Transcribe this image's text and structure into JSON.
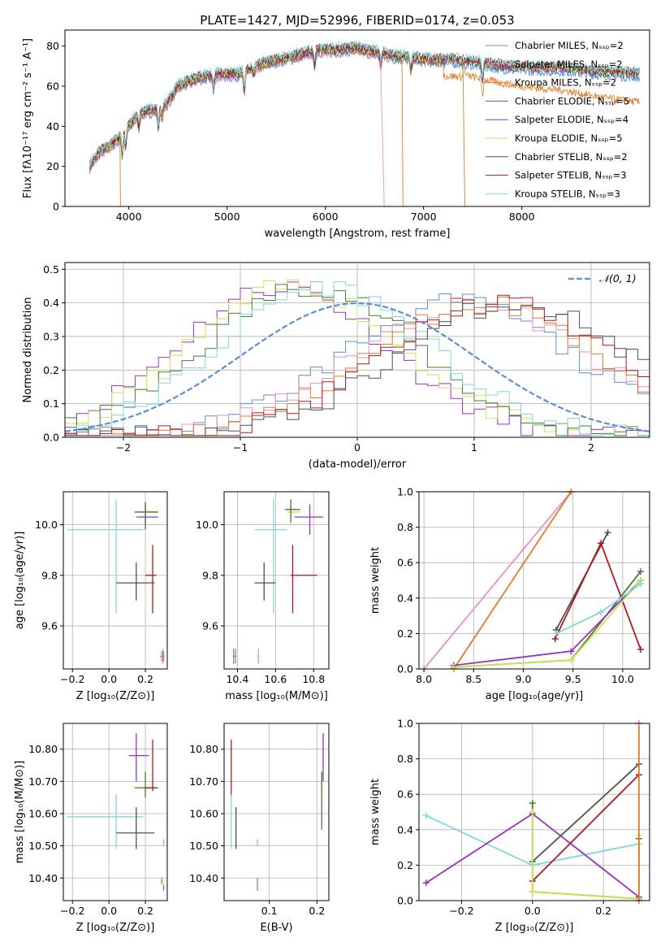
{
  "figure_title": "PLATE=1427, MJD=52996, FIBERID=0174, z=0.053",
  "colors": {
    "chabrier_miles": "#5b8ed6",
    "salpeter_miles": "#e890c8",
    "kroupa_miles": "#e07b28",
    "chabrier_elodie": "#4a7a3a",
    "salpeter_elodie": "#9932b8",
    "kroupa_elodie": "#c8e650",
    "chabrier_stelib": "#505050",
    "salpeter_stelib": "#b01a1a",
    "kroupa_stelib": "#7fd8d8",
    "normal_curve": "#5b8ed6",
    "grid": "#b0b0b0"
  },
  "chart_data": [
    {
      "type": "line",
      "title": "PLATE=1427, MJD=52996, FIBERID=0174, z=0.053",
      "xlabel": "wavelength [Angstrom, rest frame]",
      "ylabel": "Flux [fλ10⁻¹⁷ erg cm⁻² s⁻¹ A⁻¹]",
      "xlim": [
        3350,
        9300
      ],
      "ylim": [
        0,
        88
      ],
      "xticks": [
        4000,
        5000,
        6000,
        7000,
        8000
      ],
      "yticks": [
        0,
        20,
        40,
        60,
        80
      ],
      "grid": false,
      "legend_position": "top-right",
      "legend": [
        "Chabrier MILES, Nₛₛₚ=2",
        "Salpeter MILES, Nₛₛₚ=2",
        "Kroupa MILES, Nₛₛₚ=2",
        "Chabrier ELODIE, Nₛₛₚ=5",
        "Salpeter ELODIE, Nₛₛₚ=4",
        "Kroupa ELODIE, Nₛₛₚ=5",
        "Chabrier STELIB, Nₛₛₚ=2",
        "Salpeter STELIB, Nₛₛₚ=3",
        "Kroupa STELIB, Nₛₛₚ=3"
      ],
      "continuum": {
        "x": [
          3600,
          3700,
          3800,
          3900,
          4000,
          4100,
          4200,
          4300,
          4400,
          4500,
          4700,
          4900,
          5100,
          5300,
          5500,
          5700,
          5900,
          6100,
          6300,
          6500,
          6700,
          6900,
          7100,
          7300,
          7500,
          7800,
          8100,
          8400,
          8800,
          9200
        ],
        "y": [
          20,
          27,
          30,
          34,
          40,
          46,
          48,
          48,
          52,
          60,
          64,
          66,
          66,
          70,
          73,
          75,
          78,
          78,
          79,
          77,
          75,
          74,
          73,
          73,
          72,
          70,
          69,
          69,
          67,
          66
        ]
      },
      "drops": [
        {
          "series": "salpeter_miles",
          "x_start": 6560,
          "x_end": 6600,
          "y": 0
        },
        {
          "series": "kroupa_miles",
          "x_start": 7400,
          "x_end": 7420,
          "y": 0
        },
        {
          "series": "kroupa_miles",
          "x_start": 6780,
          "x_end": 6790,
          "y": 0
        },
        {
          "series": "kroupa_miles",
          "x_start": 3910,
          "x_end": 3915,
          "y": 0
        }
      ]
    },
    {
      "type": "line",
      "xlabel": "(data-model)/error",
      "ylabel": "Normed distribution",
      "xlim": [
        -2.5,
        2.5
      ],
      "ylim": [
        0,
        0.52
      ],
      "xticks": [
        -2,
        -1,
        0,
        1,
        2
      ],
      "yticks": [
        0.0,
        0.1,
        0.2,
        0.3,
        0.4,
        0.5
      ],
      "grid": true,
      "legend_position": "top-right",
      "legend": [
        "𝒩(0, 1)"
      ],
      "normal_pdf": {
        "mean": 0,
        "sigma": 1
      }
    },
    {
      "type": "scatter",
      "xlabel": "Z [log₁₀(Z/Z⊙)]",
      "ylabel": "age  [log₁₀(age/yr)]",
      "xlim": [
        -0.25,
        0.32
      ],
      "ylim": [
        9.43,
        10.13
      ],
      "xticks": [
        -0.2,
        0.0,
        0.2
      ],
      "yticks": [
        9.6,
        9.8,
        10.0
      ],
      "grid": true,
      "points": [
        {
          "series": "kroupa_stelib",
          "x": 0.04,
          "y": 9.98,
          "xerr": [
            0.27,
            0.15
          ],
          "yerr": [
            0.33,
            0.12
          ]
        },
        {
          "series": "salpeter_elodie",
          "x": 0.2,
          "y": 10.03,
          "xerr": [
            0.05,
            0.07
          ],
          "yerr": [
            0.05,
            0.05
          ]
        },
        {
          "series": "kroupa_elodie",
          "x": 0.2,
          "y": 10.05,
          "xerr": [
            0.06,
            0.07
          ],
          "yerr": [
            0.05,
            0.04
          ]
        },
        {
          "series": "chabrier_elodie",
          "x": 0.2,
          "y": 10.05,
          "xerr": [
            0.06,
            0.07
          ],
          "yerr": [
            0.05,
            0.04
          ]
        },
        {
          "series": "salpeter_stelib",
          "x": 0.24,
          "y": 9.8,
          "xerr": [
            0.04,
            0.02
          ],
          "yerr": [
            0.15,
            0.12
          ]
        },
        {
          "series": "chabrier_stelib",
          "x": 0.15,
          "y": 9.77,
          "xerr": [
            0.11,
            0.1
          ],
          "yerr": [
            0.07,
            0.08
          ]
        },
        {
          "series": "kroupa_miles",
          "x": 0.29,
          "y": 9.48,
          "xerr": [
            0.01,
            0.01
          ],
          "yerr": [
            0.02,
            0.02
          ]
        },
        {
          "series": "salpeter_miles",
          "x": 0.295,
          "y": 9.48,
          "xerr": [
            0.005,
            0.005
          ],
          "yerr": [
            0.03,
            0.03
          ]
        },
        {
          "series": "chabrier_miles",
          "x": 0.3,
          "y": 9.48,
          "xerr": [
            0.005,
            0.005
          ],
          "yerr": [
            0.02,
            0.02
          ]
        }
      ]
    },
    {
      "type": "scatter",
      "xlabel": "mass [log₁₀(M/M⊙)]",
      "xlim": [
        10.33,
        10.88
      ],
      "ylim": [
        9.43,
        10.13
      ],
      "xticks": [
        10.4,
        10.6,
        10.8
      ],
      "yticks": [
        9.6,
        9.8,
        10.0
      ],
      "grid": true,
      "points": [
        {
          "series": "kroupa_stelib",
          "x": 10.59,
          "y": 9.98,
          "xerr": [
            0.1,
            0.07
          ],
          "yerr": [
            0.33,
            0.12
          ]
        },
        {
          "series": "salpeter_elodie",
          "x": 10.78,
          "y": 10.03,
          "xerr": [
            0.08,
            0.07
          ],
          "yerr": [
            0.07,
            0.05
          ]
        },
        {
          "series": "kroupa_elodie",
          "x": 10.68,
          "y": 10.05,
          "xerr": [
            0.02,
            0.05
          ],
          "yerr": [
            0.05,
            0.04
          ]
        },
        {
          "series": "chabrier_elodie",
          "x": 10.68,
          "y": 10.06,
          "xerr": [
            0.03,
            0.05
          ],
          "yerr": [
            0.05,
            0.04
          ]
        },
        {
          "series": "salpeter_stelib",
          "x": 10.69,
          "y": 9.8,
          "xerr": [
            0.01,
            0.13
          ],
          "yerr": [
            0.15,
            0.12
          ]
        },
        {
          "series": "chabrier_stelib",
          "x": 10.54,
          "y": 9.77,
          "xerr": [
            0.05,
            0.06
          ],
          "yerr": [
            0.07,
            0.08
          ]
        },
        {
          "series": "kroupa_miles",
          "x": 10.39,
          "y": 9.48,
          "xerr": [
            0.005,
            0.005
          ],
          "yerr": [
            0.03,
            0.03
          ]
        },
        {
          "series": "salpeter_miles",
          "x": 10.51,
          "y": 9.48,
          "xerr": [
            0.005,
            0.005
          ],
          "yerr": [
            0.03,
            0.03
          ]
        },
        {
          "series": "chabrier_miles",
          "x": 10.38,
          "y": 9.48,
          "xerr": [
            0.005,
            0.005
          ],
          "yerr": [
            0.03,
            0.03
          ]
        }
      ]
    },
    {
      "type": "line",
      "xlabel": "age  [log₁₀(age/yr)]",
      "ylabel": "mass weight",
      "xlim": [
        7.95,
        10.27
      ],
      "ylim": [
        0,
        1
      ],
      "xticks": [
        8.0,
        8.5,
        9.0,
        9.5,
        10.0
      ],
      "yticks": [
        0.0,
        0.2,
        0.4,
        0.6,
        0.8,
        1.0
      ],
      "grid": true,
      "series": [
        {
          "key": "salpeter_miles",
          "x": [
            8.0,
            9.48
          ],
          "y": [
            0.0,
            1.0
          ]
        },
        {
          "key": "kroupa_miles",
          "x": [
            8.3,
            9.48
          ],
          "y": [
            0.0,
            1.0
          ]
        },
        {
          "key": "chabrier_stelib",
          "x": [
            9.33,
            9.85
          ],
          "y": [
            0.22,
            0.77
          ]
        },
        {
          "key": "salpeter_stelib",
          "x": [
            9.32,
            9.78,
            10.18
          ],
          "y": [
            0.17,
            0.71,
            0.11
          ]
        },
        {
          "key": "chabrier_elodie",
          "x": [
            8.3,
            9.48,
            10.18
          ],
          "y": [
            0.01,
            0.05,
            0.55
          ]
        },
        {
          "key": "salpeter_elodie",
          "x": [
            8.3,
            9.48,
            10.18
          ],
          "y": [
            0.02,
            0.1,
            0.5
          ]
        },
        {
          "key": "kroupa_elodie",
          "x": [
            8.3,
            9.48,
            10.18
          ],
          "y": [
            0.01,
            0.05,
            0.5
          ]
        },
        {
          "key": "kroupa_stelib",
          "x": [
            9.33,
            9.78,
            10.18
          ],
          "y": [
            0.2,
            0.32,
            0.48
          ]
        }
      ]
    },
    {
      "type": "scatter",
      "xlabel": "Z [log₁₀(Z/Z⊙)]",
      "ylabel": "mass [log₁₀(M/M⊙)]",
      "xlim": [
        -0.25,
        0.32
      ],
      "ylim": [
        10.33,
        10.88
      ],
      "xticks": [
        -0.2,
        0.0,
        0.2
      ],
      "yticks": [
        10.4,
        10.5,
        10.6,
        10.7,
        10.8
      ],
      "grid": true,
      "points": [
        {
          "series": "kroupa_stelib",
          "x": 0.04,
          "y": 10.59,
          "xerr": [
            0.27,
            0.15
          ],
          "yerr": [
            0.1,
            0.07
          ]
        },
        {
          "series": "salpeter_elodie",
          "x": 0.15,
          "y": 10.78,
          "xerr": [
            0.04,
            0.07
          ],
          "yerr": [
            0.08,
            0.07
          ]
        },
        {
          "series": "kroupa_elodie",
          "x": 0.2,
          "y": 10.68,
          "xerr": [
            0.06,
            0.07
          ],
          "yerr": [
            0.03,
            0.05
          ]
        },
        {
          "series": "chabrier_elodie",
          "x": 0.2,
          "y": 10.68,
          "xerr": [
            0.06,
            0.07
          ],
          "yerr": [
            0.03,
            0.05
          ]
        },
        {
          "series": "salpeter_stelib",
          "x": 0.24,
          "y": 10.68,
          "xerr": [
            0.04,
            0.02
          ],
          "yerr": [
            0.01,
            0.15
          ]
        },
        {
          "series": "chabrier_stelib",
          "x": 0.15,
          "y": 10.54,
          "xerr": [
            0.11,
            0.1
          ],
          "yerr": [
            0.05,
            0.08
          ]
        },
        {
          "series": "kroupa_miles",
          "x": 0.29,
          "y": 10.39,
          "xerr": [
            0.005,
            0.005
          ],
          "yerr": [
            0.01,
            0.01
          ]
        },
        {
          "series": "salpeter_miles",
          "x": 0.3,
          "y": 10.51,
          "xerr": [
            0.005,
            0.005
          ],
          "yerr": [
            0.01,
            0.01
          ]
        },
        {
          "series": "chabrier_miles",
          "x": 0.3,
          "y": 10.37,
          "xerr": [
            0.005,
            0.005
          ],
          "yerr": [
            0.01,
            0.01
          ]
        }
      ]
    },
    {
      "type": "scatter",
      "xlabel": "E(B-V)",
      "xlim": [
        0.005,
        0.225
      ],
      "ylim": [
        10.33,
        10.88
      ],
      "xticks": [
        0.1,
        0.2
      ],
      "yticks": [
        10.4,
        10.5,
        10.6,
        10.7,
        10.8
      ],
      "grid": true,
      "points": [
        {
          "series": "salpeter_stelib",
          "x": 0.02,
          "y": 10.68,
          "yerr": [
            0.03,
            0.15
          ]
        },
        {
          "series": "kroupa_stelib",
          "x": 0.02,
          "y": 10.59,
          "yerr": [
            0.1,
            0.07
          ]
        },
        {
          "series": "chabrier_stelib",
          "x": 0.03,
          "y": 10.54,
          "yerr": [
            0.05,
            0.08
          ]
        },
        {
          "series": "salpeter_miles",
          "x": 0.075,
          "y": 10.51,
          "yerr": [
            0.01,
            0.01
          ]
        },
        {
          "series": "kroupa_miles",
          "x": 0.075,
          "y": 10.39,
          "yerr": [
            0.01,
            0.01
          ]
        },
        {
          "series": "chabrier_miles",
          "x": 0.075,
          "y": 10.37,
          "yerr": [
            0.01,
            0.01
          ]
        },
        {
          "series": "salpeter_elodie",
          "x": 0.213,
          "y": 10.78,
          "yerr": [
            0.08,
            0.07
          ]
        },
        {
          "series": "kroupa_elodie",
          "x": 0.21,
          "y": 10.68,
          "yerr": [
            0.03,
            0.05
          ]
        },
        {
          "series": "chabrier_elodie",
          "x": 0.21,
          "y": 10.68,
          "yerr": [
            0.13,
            0.05
          ]
        }
      ]
    },
    {
      "type": "line",
      "xlabel": "Z [log₁₀(Z/Z⊙)]",
      "ylabel": "mass weight",
      "xlim": [
        -0.32,
        0.33
      ],
      "ylim": [
        0,
        1
      ],
      "xticks": [
        -0.2,
        0.0,
        0.2
      ],
      "yticks": [
        0.0,
        0.2,
        0.4,
        0.6,
        0.8,
        1.0
      ],
      "grid": true,
      "series": [
        {
          "key": "kroupa_stelib",
          "x": [
            -0.3,
            0.0,
            0.3
          ],
          "y": [
            0.48,
            0.2,
            0.32
          ]
        },
        {
          "key": "salpeter_elodie",
          "x": [
            -0.3,
            0.0,
            0.3
          ],
          "y": [
            0.1,
            0.49,
            0.02
          ]
        },
        {
          "key": "chabrier_stelib",
          "x": [
            0.0,
            0.3
          ],
          "y": [
            0.22,
            0.77
          ]
        },
        {
          "key": "salpeter_stelib",
          "x": [
            0.0,
            0.3
          ],
          "y": [
            0.11,
            0.71
          ]
        },
        {
          "key": "chabrier_elodie",
          "x": [
            0.0,
            0.0,
            0.3,
            0.3
          ],
          "y": [
            0.55,
            0.05,
            0.01,
            0.35
          ]
        },
        {
          "key": "kroupa_elodie",
          "x": [
            0.0,
            0.0,
            0.3,
            0.3
          ],
          "y": [
            0.5,
            0.05,
            0.01,
            0.37
          ]
        },
        {
          "key": "kroupa_miles",
          "x": [
            0.3,
            0.3
          ],
          "y": [
            0.0,
            1.0
          ]
        },
        {
          "key": "salpeter_miles",
          "x": [
            0.3
          ],
          "y": [
            1.0
          ]
        }
      ]
    }
  ]
}
